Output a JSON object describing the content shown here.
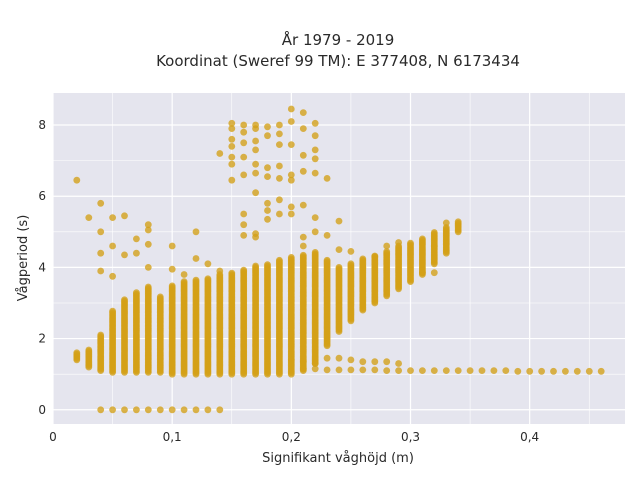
{
  "chart_data": {
    "type": "scatter",
    "title_line1": "År 1979 - 2019",
    "title_line2": "Koordinat (Sweref 99 TM): E 377408, N 6173434",
    "xlabel": "Signifikant våghöjd (m)",
    "ylabel": "Vågperiod (s)",
    "xlim": [
      0,
      0.48
    ],
    "ylim": [
      -0.4,
      8.9
    ],
    "x_ticks": [
      0,
      0.1,
      0.2,
      0.3,
      0.4
    ],
    "x_tick_labels": [
      "0",
      "0,1",
      "0,2",
      "0,3",
      "0,4"
    ],
    "y_ticks": [
      0,
      2,
      4,
      6,
      8
    ],
    "y_tick_labels": [
      "0",
      "2",
      "4",
      "6",
      "8"
    ],
    "grid": true,
    "colors": {
      "marker": "#D4A017",
      "plot_bg": "#E5E5EE",
      "grid": "#ffffff"
    },
    "series": [
      {
        "band_columns": [
          [
            0.02,
            1.4,
            1.6
          ],
          [
            0.03,
            1.2,
            1.7
          ],
          [
            0.04,
            1.1,
            2.1
          ],
          [
            0.05,
            1.05,
            2.8
          ],
          [
            0.06,
            1.05,
            3.1
          ],
          [
            0.07,
            1.05,
            3.3
          ],
          [
            0.08,
            1.05,
            3.45
          ],
          [
            0.09,
            1.05,
            3.2
          ],
          [
            0.1,
            1.0,
            3.5
          ],
          [
            0.11,
            1.0,
            3.6
          ],
          [
            0.12,
            1.0,
            3.65
          ],
          [
            0.13,
            1.0,
            3.7
          ],
          [
            0.14,
            1.0,
            3.8
          ],
          [
            0.15,
            1.0,
            3.85
          ],
          [
            0.16,
            1.0,
            3.95
          ],
          [
            0.17,
            1.0,
            4.05
          ],
          [
            0.18,
            1.0,
            4.1
          ],
          [
            0.19,
            1.0,
            4.2
          ],
          [
            0.2,
            1.0,
            4.3
          ],
          [
            0.21,
            1.1,
            4.35
          ],
          [
            0.22,
            1.3,
            4.45
          ],
          [
            0.23,
            1.8,
            4.2
          ],
          [
            0.24,
            2.2,
            4.0
          ],
          [
            0.25,
            2.5,
            4.1
          ],
          [
            0.26,
            2.8,
            4.25
          ],
          [
            0.27,
            3.0,
            4.35
          ],
          [
            0.28,
            3.2,
            4.45
          ],
          [
            0.29,
            3.4,
            4.6
          ],
          [
            0.3,
            3.6,
            4.7
          ],
          [
            0.31,
            3.8,
            4.8
          ],
          [
            0.32,
            4.1,
            5.0
          ],
          [
            0.33,
            4.4,
            5.15
          ],
          [
            0.34,
            5.0,
            5.3
          ]
        ],
        "tail_points": [
          [
            0.2,
            1.4
          ],
          [
            0.21,
            1.35
          ],
          [
            0.22,
            1.3
          ],
          [
            0.23,
            1.45
          ],
          [
            0.24,
            1.45
          ],
          [
            0.25,
            1.4
          ],
          [
            0.26,
            1.35
          ],
          [
            0.27,
            1.35
          ],
          [
            0.28,
            1.35
          ],
          [
            0.29,
            1.3
          ],
          [
            0.21,
            1.15
          ],
          [
            0.22,
            1.15
          ],
          [
            0.23,
            1.12
          ],
          [
            0.24,
            1.12
          ],
          [
            0.25,
            1.12
          ],
          [
            0.26,
            1.12
          ],
          [
            0.27,
            1.12
          ],
          [
            0.28,
            1.1
          ],
          [
            0.29,
            1.1
          ],
          [
            0.3,
            1.1
          ],
          [
            0.31,
            1.1
          ],
          [
            0.32,
            1.1
          ],
          [
            0.33,
            1.1
          ],
          [
            0.34,
            1.1
          ],
          [
            0.35,
            1.1
          ],
          [
            0.36,
            1.1
          ],
          [
            0.37,
            1.1
          ],
          [
            0.38,
            1.1
          ],
          [
            0.39,
            1.08
          ],
          [
            0.4,
            1.08
          ],
          [
            0.41,
            1.08
          ],
          [
            0.42,
            1.08
          ],
          [
            0.43,
            1.08
          ],
          [
            0.44,
            1.08
          ],
          [
            0.45,
            1.08
          ],
          [
            0.46,
            1.08
          ]
        ],
        "zero_points": [
          [
            0.04,
            0
          ],
          [
            0.05,
            0
          ],
          [
            0.06,
            0
          ],
          [
            0.07,
            0
          ],
          [
            0.08,
            0
          ],
          [
            0.09,
            0
          ],
          [
            0.1,
            0
          ],
          [
            0.11,
            0
          ],
          [
            0.12,
            0
          ],
          [
            0.13,
            0
          ],
          [
            0.14,
            0
          ]
        ],
        "scatter_points": [
          [
            0.02,
            6.45
          ],
          [
            0.03,
            5.4
          ],
          [
            0.04,
            5.8
          ],
          [
            0.04,
            5.0
          ],
          [
            0.04,
            4.4
          ],
          [
            0.04,
            3.9
          ],
          [
            0.05,
            5.4
          ],
          [
            0.05,
            4.6
          ],
          [
            0.05,
            3.75
          ],
          [
            0.06,
            5.45
          ],
          [
            0.06,
            4.35
          ],
          [
            0.07,
            4.8
          ],
          [
            0.07,
            4.4
          ],
          [
            0.08,
            5.2
          ],
          [
            0.08,
            5.05
          ],
          [
            0.08,
            4.65
          ],
          [
            0.08,
            4.0
          ],
          [
            0.1,
            4.6
          ],
          [
            0.1,
            3.95
          ],
          [
            0.11,
            3.8
          ],
          [
            0.12,
            5.0
          ],
          [
            0.12,
            4.25
          ],
          [
            0.13,
            4.1
          ],
          [
            0.14,
            3.9
          ],
          [
            0.14,
            7.2
          ],
          [
            0.15,
            8.05
          ],
          [
            0.15,
            7.9
          ],
          [
            0.15,
            7.6
          ],
          [
            0.15,
            7.4
          ],
          [
            0.15,
            7.1
          ],
          [
            0.15,
            6.9
          ],
          [
            0.15,
            6.45
          ],
          [
            0.16,
            8.0
          ],
          [
            0.16,
            7.8
          ],
          [
            0.16,
            7.5
          ],
          [
            0.16,
            7.1
          ],
          [
            0.16,
            6.6
          ],
          [
            0.16,
            5.5
          ],
          [
            0.16,
            5.2
          ],
          [
            0.16,
            4.9
          ],
          [
            0.17,
            8.0
          ],
          [
            0.17,
            7.9
          ],
          [
            0.17,
            7.55
          ],
          [
            0.17,
            7.3
          ],
          [
            0.17,
            6.9
          ],
          [
            0.17,
            6.65
          ],
          [
            0.17,
            6.1
          ],
          [
            0.17,
            4.95
          ],
          [
            0.17,
            4.85
          ],
          [
            0.18,
            7.95
          ],
          [
            0.18,
            7.7
          ],
          [
            0.18,
            6.8
          ],
          [
            0.18,
            6.55
          ],
          [
            0.18,
            5.8
          ],
          [
            0.18,
            5.6
          ],
          [
            0.18,
            5.35
          ],
          [
            0.19,
            8.0
          ],
          [
            0.19,
            7.75
          ],
          [
            0.19,
            7.45
          ],
          [
            0.19,
            6.85
          ],
          [
            0.19,
            6.5
          ],
          [
            0.19,
            5.9
          ],
          [
            0.19,
            5.5
          ],
          [
            0.2,
            8.45
          ],
          [
            0.2,
            8.1
          ],
          [
            0.2,
            7.45
          ],
          [
            0.2,
            6.6
          ],
          [
            0.2,
            6.45
          ],
          [
            0.2,
            5.7
          ],
          [
            0.2,
            5.5
          ],
          [
            0.21,
            8.35
          ],
          [
            0.21,
            7.9
          ],
          [
            0.21,
            7.15
          ],
          [
            0.21,
            6.7
          ],
          [
            0.21,
            5.75
          ],
          [
            0.21,
            4.85
          ],
          [
            0.21,
            4.6
          ],
          [
            0.22,
            8.05
          ],
          [
            0.22,
            7.7
          ],
          [
            0.22,
            7.3
          ],
          [
            0.22,
            7.05
          ],
          [
            0.22,
            6.65
          ],
          [
            0.22,
            5.4
          ],
          [
            0.22,
            5.0
          ],
          [
            0.23,
            6.5
          ],
          [
            0.23,
            4.9
          ],
          [
            0.24,
            5.3
          ],
          [
            0.24,
            4.5
          ],
          [
            0.25,
            4.45
          ],
          [
            0.26,
            4.0
          ],
          [
            0.27,
            4.3
          ],
          [
            0.28,
            4.6
          ],
          [
            0.29,
            4.7
          ],
          [
            0.31,
            3.85
          ],
          [
            0.32,
            3.85
          ],
          [
            0.32,
            4.6
          ],
          [
            0.33,
            5.25
          ]
        ]
      }
    ]
  }
}
